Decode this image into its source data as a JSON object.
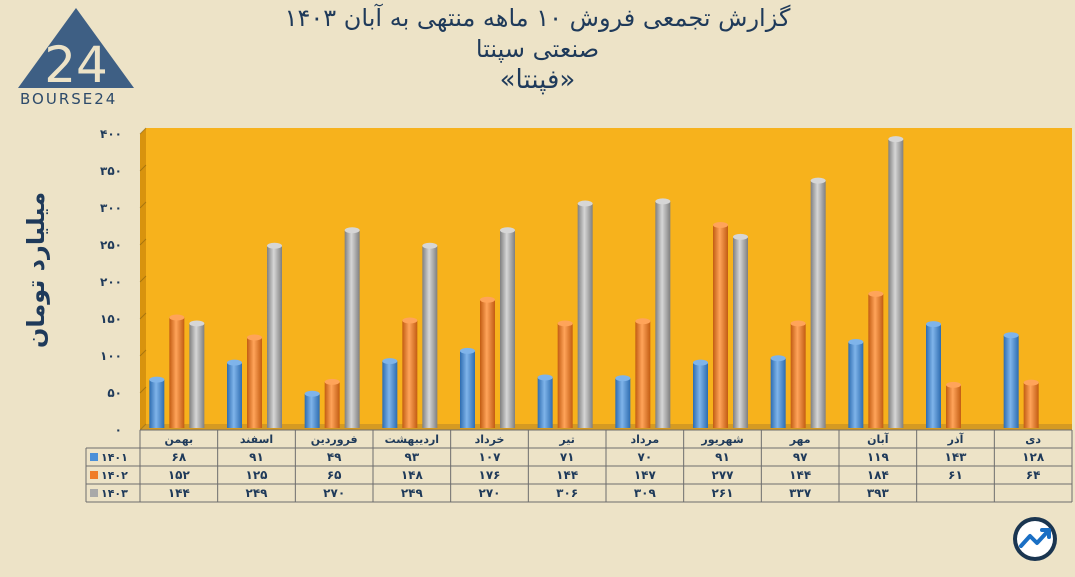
{
  "titles": {
    "line1": "گزارش تجمعی فروش ۱۰ ماهه منتهی به آبان ۱۴۰۳",
    "line2": "صنعتی سپنتا",
    "line3": "«فپنتا»"
  },
  "logo": {
    "text": "BOURSE24",
    "mark": "24"
  },
  "chart_data": {
    "type": "bar",
    "ylabel": "میلیارد تومان",
    "ylim": [
      0,
      400
    ],
    "yticks": [
      0,
      50,
      100,
      150,
      200,
      250,
      300,
      350,
      400
    ],
    "ytick_labels": [
      "۰",
      "۵۰",
      "۱۰۰",
      "۱۵۰",
      "۲۰۰",
      "۲۵۰",
      "۳۰۰",
      "۳۵۰",
      "۴۰۰"
    ],
    "categories": [
      "بهمن",
      "اسفند",
      "فروردین",
      "اردیبهشت",
      "خرداد",
      "تیر",
      "مرداد",
      "شهریور",
      "مهر",
      "آبان",
      "آذر",
      "دی"
    ],
    "series": [
      {
        "name": "۱۴۰۱",
        "color": "#4a8fd8",
        "values": [
          68,
          91,
          49,
          93,
          107,
          71,
          70,
          91,
          97,
          119,
          143,
          128
        ],
        "labels": [
          "۶۸",
          "۹۱",
          "۴۹",
          "۹۳",
          "۱۰۷",
          "۷۱",
          "۷۰",
          "۹۱",
          "۹۷",
          "۱۱۹",
          "۱۴۳",
          "۱۲۸"
        ]
      },
      {
        "name": "۱۴۰۲",
        "color": "#f07d28",
        "values": [
          152,
          125,
          65,
          148,
          176,
          144,
          147,
          277,
          144,
          184,
          61,
          64
        ],
        "labels": [
          "۱۵۲",
          "۱۲۵",
          "۶۵",
          "۱۴۸",
          "۱۷۶",
          "۱۴۴",
          "۱۴۷",
          "۲۷۷",
          "۱۴۴",
          "۱۸۴",
          "۶۱",
          "۶۴"
        ]
      },
      {
        "name": "۱۴۰۳",
        "color": "#a9a9a9",
        "values": [
          144,
          249,
          270,
          249,
          270,
          306,
          309,
          261,
          337,
          393,
          null,
          null
        ],
        "labels": [
          "۱۴۴",
          "۲۴۹",
          "۲۷۰",
          "۲۴۹",
          "۲۷۰",
          "۳۰۶",
          "۳۰۹",
          "۲۶۱",
          "۳۳۷",
          "۳۹۳",
          "",
          ""
        ]
      }
    ],
    "plot_background": "#f7b21c",
    "grid": true,
    "data_table": true
  }
}
